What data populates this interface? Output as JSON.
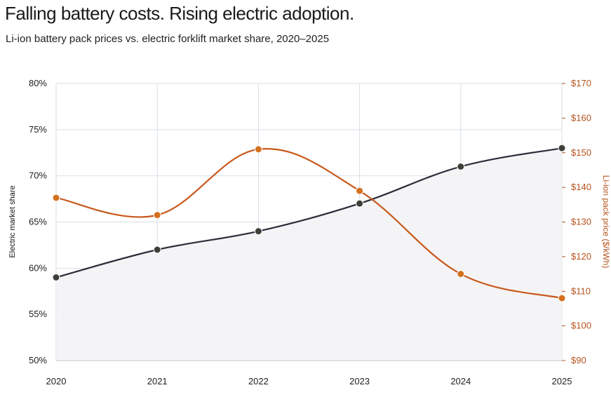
{
  "chart_data": {
    "type": "line",
    "title": "Falling battery costs. Rising electric adoption.",
    "subtitle": "Li-ion battery pack prices vs. electric forklift market share, 2020–2025",
    "x": [
      "2020",
      "2021",
      "2022",
      "2023",
      "2024",
      "2025"
    ],
    "y_left": {
      "label": "Electric market share",
      "ylim": [
        50,
        80
      ],
      "ticks": [
        50,
        55,
        60,
        65,
        70,
        75,
        80
      ],
      "tick_labels": [
        "50%",
        "55%",
        "60%",
        "65%",
        "70%",
        "75%",
        "80%"
      ]
    },
    "y_right": {
      "label": "Li-ion pack price ($/kWh)",
      "ylim": [
        90,
        170
      ],
      "ticks": [
        90,
        100,
        110,
        120,
        130,
        140,
        150,
        160,
        170
      ],
      "tick_labels": [
        "$90",
        "$100",
        "$110",
        "$120",
        "$130",
        "$140",
        "$150",
        "$160",
        "$170"
      ]
    },
    "series": [
      {
        "axis": "left",
        "color": "#2b2d3a",
        "marker_color": "#3f3f3a",
        "fill": true,
        "values": [
          59,
          62,
          64,
          67,
          71,
          73
        ]
      },
      {
        "axis": "right",
        "color": "#c8581a",
        "marker_color": "#d4711f",
        "fill": false,
        "values": [
          137,
          132,
          151,
          139,
          115,
          108
        ]
      }
    ],
    "grid": true,
    "legend": "none"
  }
}
